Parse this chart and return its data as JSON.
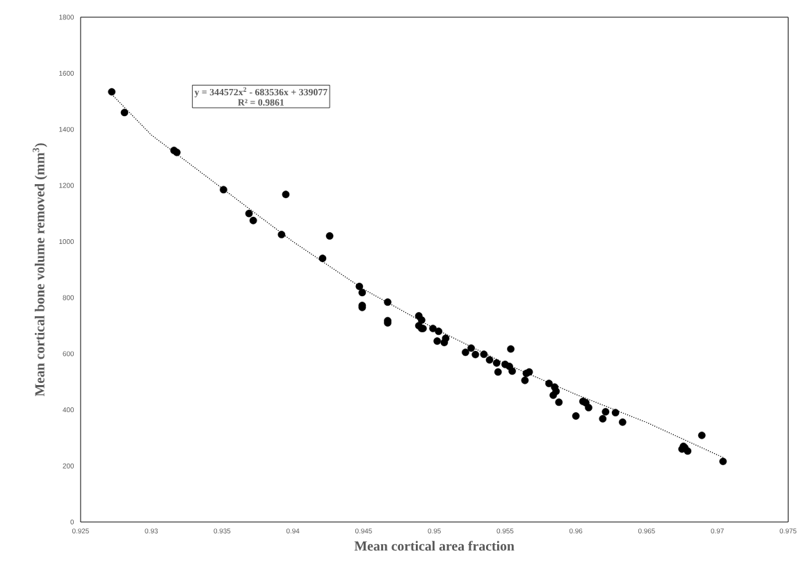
{
  "chart_data": {
    "type": "scatter",
    "xlabel": "Mean cortical area fraction",
    "ylabel": "Mean cortical bone volume removed (mm$^{3}$)",
    "annotations": [
      "y = 344572x$^{2}$ - 683536x + 339077",
      "R² = 0.9861"
    ],
    "xlim": [
      0.925,
      0.975
    ],
    "ylim": [
      0,
      1800
    ],
    "xticks": [
      0.925,
      0.93,
      0.935,
      0.94,
      0.945,
      0.95,
      0.955,
      0.96,
      0.965,
      0.97,
      0.975
    ],
    "yticks": [
      0,
      200,
      400,
      600,
      800,
      1000,
      1200,
      1400,
      1600,
      1800
    ],
    "grid": false,
    "series": [
      {
        "marker": "circle",
        "color": "#000000",
        "x": [
          0.9272,
          0.9281,
          0.9316,
          0.9318,
          0.9351,
          0.9369,
          0.9372,
          0.9392,
          0.9395,
          0.9421,
          0.9426,
          0.9447,
          0.9449,
          0.9449,
          0.9449,
          0.9467,
          0.9467,
          0.9467,
          0.9489,
          0.9491,
          0.9489,
          0.9491,
          0.9492,
          0.9499,
          0.9503,
          0.9502,
          0.9508,
          0.9507,
          0.9526,
          0.9522,
          0.9529,
          0.9535,
          0.9539,
          0.9544,
          0.9545,
          0.955,
          0.9553,
          0.9554,
          0.9555,
          0.9565,
          0.9564,
          0.9567,
          0.9581,
          0.9585,
          0.9586,
          0.9584,
          0.9588,
          0.96,
          0.9605,
          0.9607,
          0.9609,
          0.9621,
          0.9619,
          0.9628,
          0.9633,
          0.9675,
          0.9676,
          0.9677,
          0.9679,
          0.9689,
          0.9704
        ],
        "values": [
          1534,
          1460,
          1325,
          1318,
          1185,
          1100,
          1075,
          1025,
          1168,
          940,
          1020,
          840,
          818,
          772,
          765,
          784,
          718,
          710,
          735,
          720,
          700,
          690,
          690,
          690,
          680,
          645,
          655,
          640,
          620,
          605,
          597,
          598,
          578,
          567,
          535,
          562,
          555,
          617,
          538,
          530,
          505,
          535,
          494,
          481,
          466,
          452,
          427,
          378,
          430,
          425,
          408,
          393,
          368,
          390,
          356,
          260,
          270,
          265,
          253,
          309,
          216
        ]
      },
      {
        "type": "line",
        "line_style": "dotted",
        "marker": "none",
        "color": "#000000",
        "x": [
          0.9272,
          0.93,
          0.935,
          0.94,
          0.945,
          0.95,
          0.955,
          0.96,
          0.965,
          0.9704
        ],
        "values": [
          1525,
          1380,
          1190,
          1000,
          830,
          690,
          565,
          455,
          355,
          230
        ]
      }
    ]
  }
}
